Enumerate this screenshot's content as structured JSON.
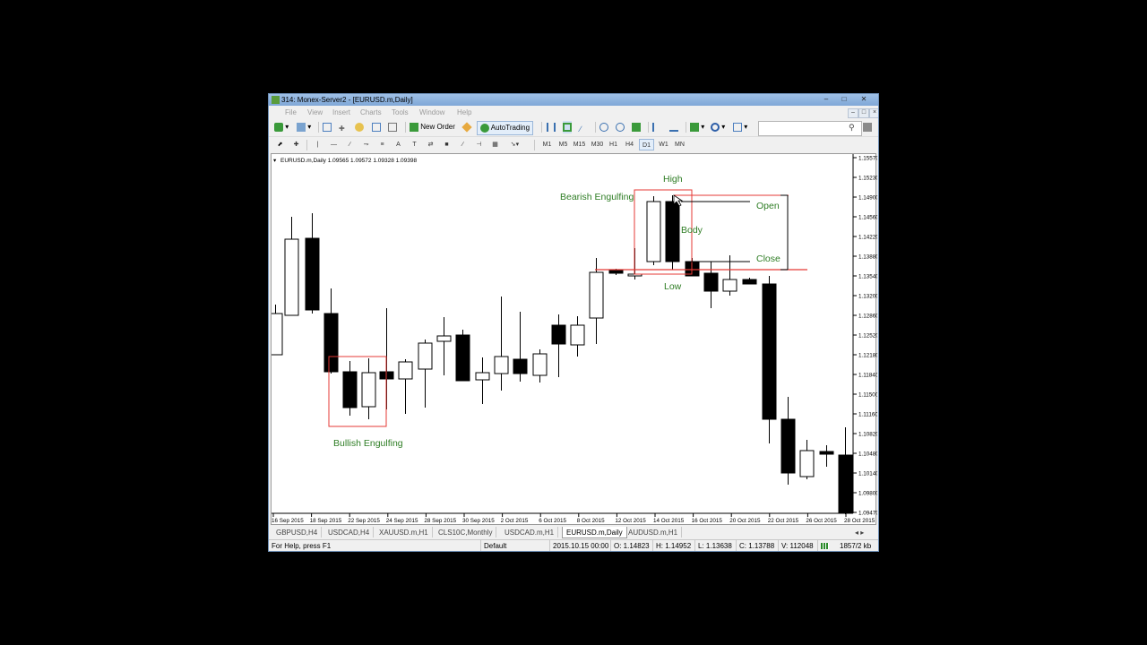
{
  "window": {
    "title": "314: Monex-Server2 - [EURUSD.m,Daily]"
  },
  "menu": [
    "File",
    "View",
    "Insert",
    "Charts",
    "Tools",
    "Window",
    "Help"
  ],
  "toolbar": {
    "new_order": "New Order",
    "auto_trading": "AutoTrading",
    "timeframes": [
      "M1",
      "M5",
      "M15",
      "M30",
      "H1",
      "H4",
      "D1",
      "W1",
      "MN"
    ]
  },
  "chart": {
    "header": "EURUSD.m,Daily  1.09565 1.09572 1.09328 1.09398",
    "price_labels": [
      "1.15570",
      "1.15230",
      "1.14900",
      "1.14560",
      "1.14220",
      "1.13880",
      "1.13540",
      "1.13200",
      "1.12860",
      "1.12520",
      "1.12180",
      "1.11840",
      "1.11500",
      "1.11160",
      "1.10820",
      "1.10480",
      "1.10140",
      "1.09800",
      "1.09470"
    ],
    "date_labels": [
      "16 Sep 2015",
      "18 Sep 2015",
      "22 Sep 2015",
      "24 Sep 2015",
      "28 Sep 2015",
      "30 Sep 2015",
      "2 Oct 2015",
      "6 Oct 2015",
      "8 Oct 2015",
      "12 Oct 2015",
      "14 Oct 2015",
      "16 Oct 2015",
      "20 Oct 2015",
      "22 Oct 2015",
      "26 Oct 2015",
      "28 Oct 2015"
    ],
    "annotations": {
      "bearish": "Bearish Engulfing",
      "bullish": "Bullish Engulfing",
      "high": "High",
      "open": "Open",
      "body": "Body",
      "close": "Close",
      "low": "Low"
    },
    "colors": {
      "annotation": "#2e7d24",
      "box": "#e53935",
      "bull_fill": "#ffffff",
      "bear_fill": "#000000"
    }
  },
  "tabs": [
    "GBPUSD,H4",
    "USDCAD,H4",
    "XAUUSD.m,H1",
    "CLS10C,Monthly",
    "USDCAD.m,H1",
    "EURUSD.m,Daily",
    "AUDUSD.m,H1"
  ],
  "active_tab": "EURUSD.m,Daily",
  "status": {
    "help": "For Help, press F1",
    "profile": "Default",
    "datetime": "2015.10.15 00:00",
    "open": "O: 1.14823",
    "high": "H: 1.14952",
    "low": "L: 1.13638",
    "close": "C: 1.13788",
    "volume": "V: 112048",
    "traffic": "1857/2 kb"
  }
}
